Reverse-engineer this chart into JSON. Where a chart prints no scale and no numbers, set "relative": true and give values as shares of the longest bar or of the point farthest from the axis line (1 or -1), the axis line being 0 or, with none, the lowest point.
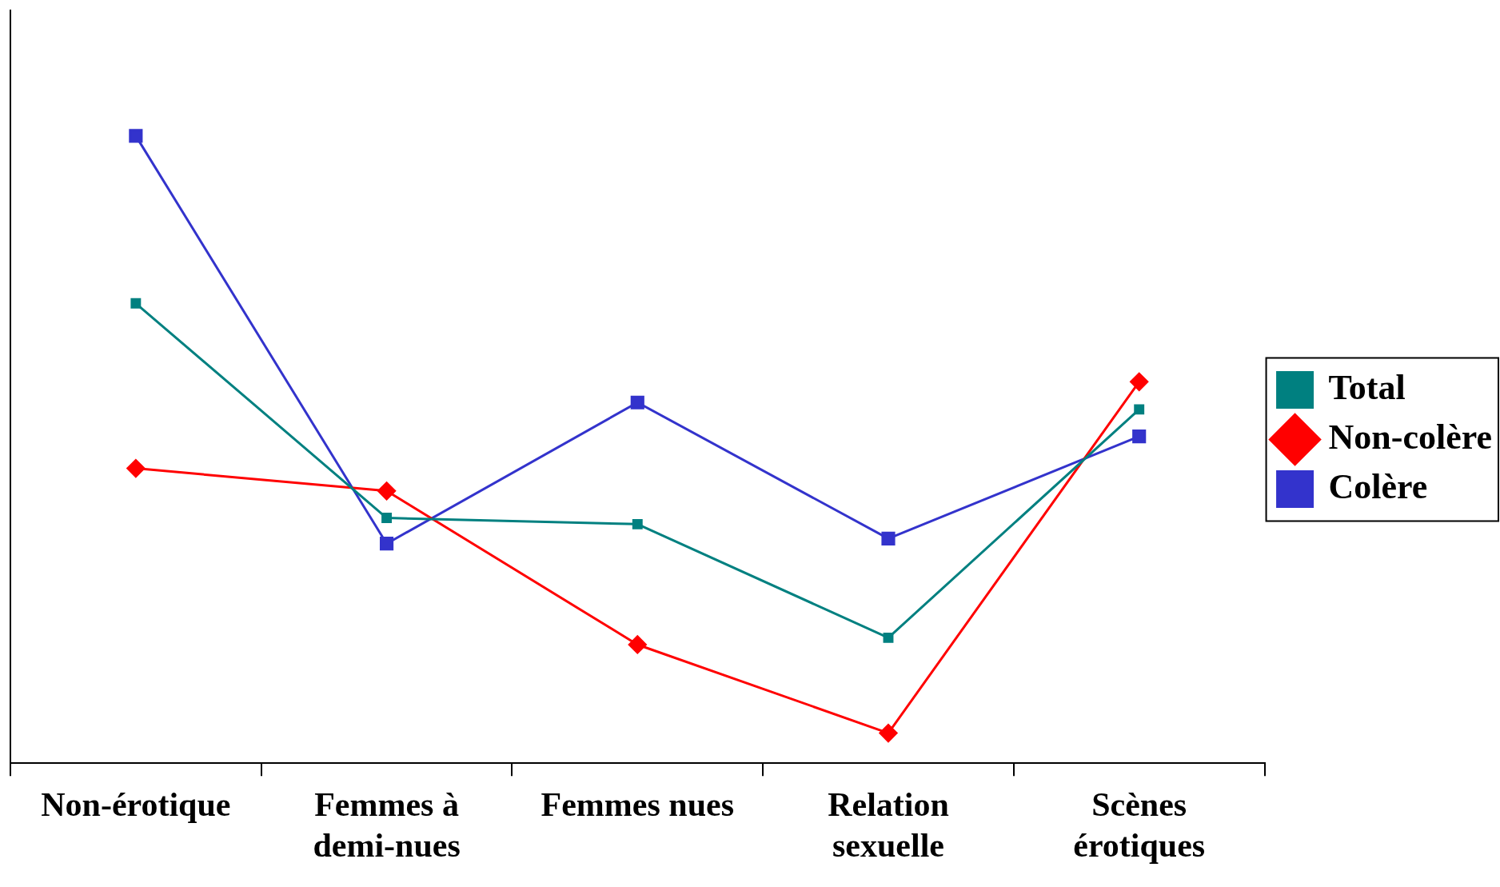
{
  "chart_data": {
    "type": "line",
    "relative": true,
    "categories": [
      "Non-érotique",
      "Femmes à demi-nues",
      "Femmes nues",
      "Relation sexuelle",
      "Scènes érotiques"
    ],
    "series": [
      {
        "name": "Total",
        "color": "#008080",
        "marker": "square",
        "values": [
          0.733,
          0.391,
          0.381,
          0.2,
          0.564
        ]
      },
      {
        "name": "Non-colère",
        "color": "#ff0000",
        "marker": "diamond",
        "values": [
          0.47,
          0.434,
          0.189,
          0.048,
          0.608
        ]
      },
      {
        "name": "Colère",
        "color": "#3333cc",
        "marker": "square",
        "values": [
          1,
          0.35,
          0.575,
          0.358,
          0.521
        ]
      }
    ],
    "legend": "right",
    "grid": false,
    "line_style": "solid"
  }
}
